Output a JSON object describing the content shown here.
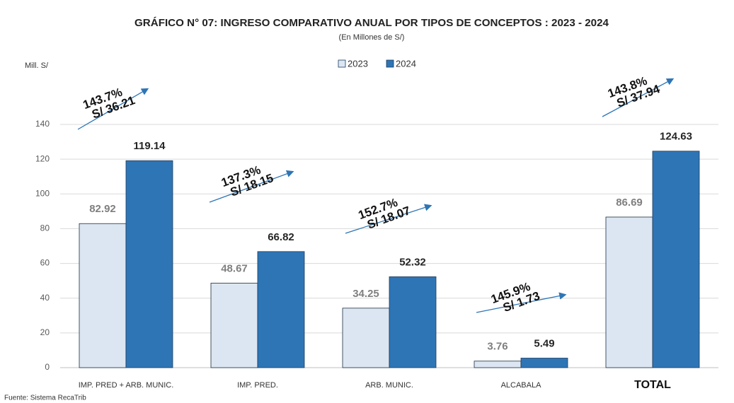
{
  "chart_data": {
    "type": "bar",
    "title": "GRÁFICO N° 07: INGRESO COMPARATIVO ANUAL POR TIPOS DE CONCEPTOS : 2023  - 2024",
    "subtitle": "(En Millones de S/)",
    "y_axis_label": "Mill. S/",
    "source": "Fuente: Sistema RecaTrib",
    "categories": [
      "IMP. PRED + ARB. MUNIC.",
      "IMP. PRED.",
      "ARB. MUNIC.",
      "ALCABALA",
      "TOTAL"
    ],
    "series": [
      {
        "name": "2023",
        "color": "#dce6f2",
        "values": [
          82.92,
          48.67,
          34.25,
          3.76,
          86.69
        ]
      },
      {
        "name": "2024",
        "color": "#2e75b6",
        "values": [
          119.14,
          66.82,
          52.32,
          5.49,
          124.63
        ]
      }
    ],
    "annotations": [
      {
        "category": "IMP. PRED + ARB. MUNIC.",
        "lines": [
          "143.7%",
          "S/ 36.21"
        ]
      },
      {
        "category": "IMP. PRED.",
        "lines": [
          "137.3%",
          "S/ 18.15"
        ]
      },
      {
        "category": "ARB. MUNIC.",
        "lines": [
          "152.7%",
          "S/ 18.07"
        ]
      },
      {
        "category": "ALCABALA",
        "lines": [
          "145.9%",
          "S/ 1.73"
        ]
      },
      {
        "category": "TOTAL",
        "lines": [
          "143.8%",
          "S/ 37.94"
        ]
      }
    ],
    "ylim": [
      0,
      140
    ],
    "yticks": [
      0,
      20,
      40,
      60,
      80,
      100,
      120,
      140
    ],
    "grid": true,
    "legend": "top"
  }
}
